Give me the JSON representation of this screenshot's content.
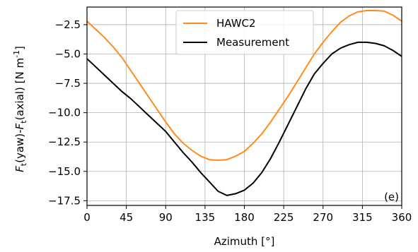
{
  "chart_data": {
    "type": "line",
    "xlabel": "Azimuth [°]",
    "ylabel_parts": {
      "f1": "F",
      "sub1": "t",
      "mid": "(yaw)-",
      "f2": "F",
      "sub2": "t",
      "tail": "(axial) [N m",
      "sup": "-1",
      "close": "]"
    },
    "panel_label": "(e)",
    "xlim": [
      0,
      360
    ],
    "ylim": [
      -17.9,
      -1.0
    ],
    "xticks": [
      0,
      45,
      90,
      135,
      180,
      225,
      270,
      315,
      360
    ],
    "yticks": [
      -2.5,
      -5.0,
      -7.5,
      -10.0,
      -12.5,
      -15.0,
      -17.5
    ],
    "ytick_labels": [
      "−2.5",
      "−5.0",
      "−7.5",
      "−10.0",
      "−12.5",
      "−15.0",
      "−17.5"
    ],
    "grid": true,
    "legend_position": "top-center",
    "series": [
      {
        "name": "HAWC2",
        "color": "#ff8c1a",
        "x": [
          0,
          10,
          20,
          30,
          40,
          50,
          60,
          70,
          80,
          90,
          100,
          110,
          120,
          130,
          140,
          150,
          160,
          170,
          180,
          190,
          200,
          210,
          220,
          230,
          240,
          250,
          260,
          270,
          280,
          290,
          300,
          310,
          320,
          330,
          340,
          350,
          360
        ],
        "values": [
          -2.2,
          -2.9,
          -3.6,
          -4.4,
          -5.3,
          -6.4,
          -7.5,
          -8.6,
          -9.7,
          -10.8,
          -11.8,
          -12.6,
          -13.2,
          -13.7,
          -14.0,
          -14.05,
          -14.0,
          -13.7,
          -13.3,
          -12.6,
          -11.8,
          -10.8,
          -9.7,
          -8.6,
          -7.4,
          -6.2,
          -5.0,
          -4.0,
          -3.1,
          -2.3,
          -1.75,
          -1.4,
          -1.3,
          -1.3,
          -1.35,
          -1.7,
          -2.2
        ]
      },
      {
        "name": "Measurement",
        "color": "#000000",
        "x": [
          0,
          10,
          20,
          30,
          40,
          50,
          60,
          70,
          80,
          90,
          100,
          110,
          120,
          130,
          140,
          150,
          160,
          170,
          180,
          190,
          200,
          210,
          220,
          230,
          240,
          250,
          260,
          270,
          280,
          290,
          300,
          310,
          320,
          330,
          340,
          350,
          360
        ],
        "values": [
          -5.4,
          -6.1,
          -6.8,
          -7.5,
          -8.2,
          -8.8,
          -9.5,
          -10.2,
          -10.9,
          -11.6,
          -12.5,
          -13.4,
          -14.2,
          -15.1,
          -15.9,
          -16.7,
          -17.05,
          -16.9,
          -16.6,
          -16.0,
          -15.1,
          -13.9,
          -12.5,
          -11.0,
          -9.5,
          -8.0,
          -6.7,
          -5.8,
          -5.0,
          -4.5,
          -4.2,
          -4.0,
          -4.0,
          -4.1,
          -4.3,
          -4.7,
          -5.2
        ]
      }
    ]
  }
}
